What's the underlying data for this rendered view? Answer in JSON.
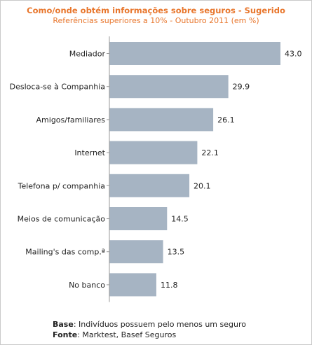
{
  "title": "Como/onde obtém informações sobre seguros - Sugerido",
  "subtitle": "Referências superiores a 10% - Outubro 2011 (em %)",
  "colors": {
    "title": "#e8762c",
    "bar": "#a6b4c3"
  },
  "chart_data": {
    "type": "bar",
    "orientation": "horizontal",
    "categories": [
      "Mediador",
      "Desloca-se à Companhia",
      "Amigos/familiares",
      "Internet",
      "Telefona p/ companhia",
      "Meios de comunicação",
      "Mailing's das comp.ª",
      "No banco"
    ],
    "values": [
      43.0,
      29.9,
      26.1,
      22.1,
      20.1,
      14.5,
      13.5,
      11.8
    ],
    "value_labels": [
      "43.0",
      "29.9",
      "26.1",
      "22.1",
      "20.1",
      "14.5",
      "13.5",
      "11.8"
    ],
    "xlim": [
      0,
      43.0
    ],
    "grid": false,
    "legend": "none"
  },
  "footer": {
    "base_label": "Base",
    "base_text": ": Indivíduos possuem pelo menos um seguro",
    "fonte_label": "Fonte",
    "fonte_text": ": Marktest, Basef Seguros"
  }
}
